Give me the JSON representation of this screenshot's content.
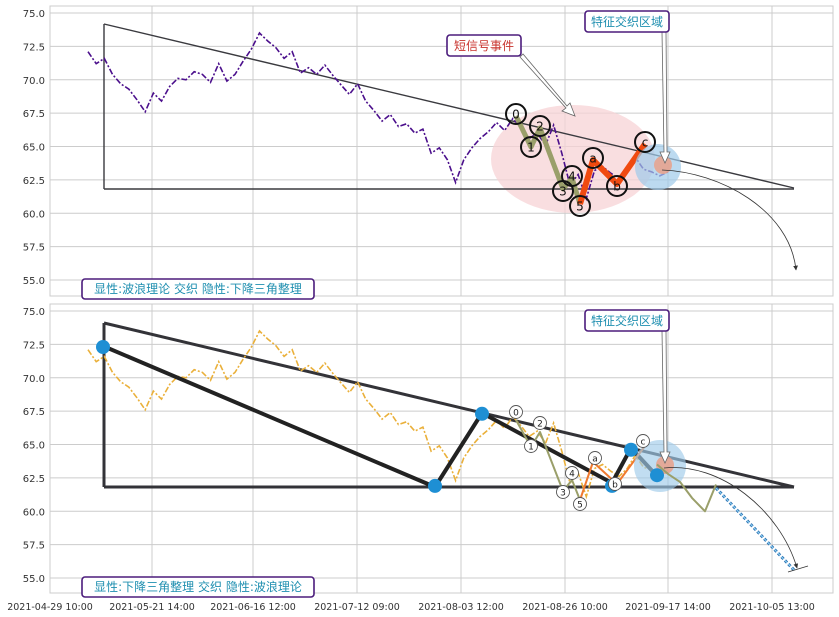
{
  "colors": {
    "panel_bg": "#ffffff",
    "grid": "#cccccc",
    "tick_text": "#333333",
    "price_top": "#4b0f8c",
    "price_bottom": "#eab03a",
    "triangle_top": "#3a3a3f",
    "triangle_bottom": "#333338",
    "wave_bright": "#f04a10",
    "wave_olive": "#9a9f6a",
    "node_blue": "#1e8fd4",
    "zone_blue": "#9fcbea",
    "zone_pink": "#f7d3d6",
    "label_teal": "#1f8fb0",
    "label_red": "#c8322c",
    "label_border": "#4b1c7c",
    "projection_dash": "#2a6fb0"
  },
  "chart_data": [
    {
      "type": "line",
      "panel": "top",
      "ylim": [
        54,
        75.5
      ],
      "yticks": [
        "75.0",
        "72.5",
        "70.0",
        "67.5",
        "65.0",
        "62.5",
        "60.0",
        "57.5",
        "55.0"
      ],
      "grid": true,
      "series": [
        {
          "values": [
            72.1,
            71.2,
            71.6,
            70.4,
            69.7,
            69.3,
            68.5,
            67.6,
            69.0,
            68.4,
            69.5,
            70.1,
            70.0,
            70.6,
            70.4,
            69.8,
            71.2,
            69.9,
            70.4,
            71.4,
            72.3,
            73.5,
            72.9,
            72.4,
            71.6,
            72.1,
            70.5,
            70.9,
            70.4,
            71.1,
            70.3,
            69.6,
            68.9,
            69.7,
            68.4,
            67.7,
            66.9,
            67.4,
            66.5,
            66.7,
            66.0,
            66.3,
            64.5,
            64.9,
            64.0,
            62.3,
            64.0,
            64.9,
            65.6,
            66.1,
            66.8,
            66.2,
            67.1,
            66.4,
            65.6,
            66.0,
            65.1,
            66.6,
            64.5,
            62.1,
            62.9,
            61.1,
            63.2,
            63.5,
            63.0,
            62.6,
            63.2,
            64.2,
            63.3,
            63.1,
            62.8,
            63.1
          ]
        }
      ],
      "annotations": {
        "wave_labels": [
          "0",
          "1",
          "2",
          "3",
          "4",
          "5",
          "a",
          "b",
          "c"
        ],
        "event_label": "短信号事件",
        "zone_label": "特征交织区域",
        "footer_label": "显性:波浪理论 交织 隐性:下降三角整理"
      }
    },
    {
      "type": "line",
      "panel": "bottom",
      "ylim": [
        54,
        75.5
      ],
      "yticks": [
        "75.0",
        "72.5",
        "70.0",
        "67.5",
        "65.0",
        "62.5",
        "60.0",
        "57.5",
        "55.0"
      ],
      "grid": true,
      "x_ticks": [
        "2021-04-29 10:00",
        "2021-05-21 14:00",
        "2021-06-16 12:00",
        "2021-07-12 09:00",
        "2021-08-03 12:00",
        "2021-08-26 10:00",
        "2021-09-17 14:00",
        "2021-10-05 13:00"
      ],
      "series": [
        {
          "values": [
            72.1,
            71.2,
            71.6,
            70.4,
            69.7,
            69.3,
            68.5,
            67.6,
            69.0,
            68.4,
            69.5,
            70.1,
            70.0,
            70.6,
            70.4,
            69.8,
            71.2,
            69.9,
            70.4,
            71.4,
            72.3,
            73.5,
            72.9,
            72.4,
            71.6,
            72.1,
            70.5,
            70.9,
            70.4,
            71.1,
            70.3,
            69.6,
            68.9,
            69.7,
            68.4,
            67.7,
            66.9,
            67.4,
            66.5,
            66.7,
            66.0,
            66.3,
            64.5,
            64.9,
            64.0,
            62.3,
            64.0,
            64.9,
            65.6,
            66.1,
            66.8,
            66.2,
            67.1,
            66.4,
            65.6,
            66.0,
            65.1,
            66.6,
            64.5,
            62.1,
            62.9,
            61.1,
            63.2,
            63.5,
            63.0,
            62.6,
            63.2,
            64.2,
            63.3,
            63.1,
            62.8,
            63.1
          ]
        }
      ],
      "triangle_pivots": [
        72.3,
        61.9,
        67.3,
        61.9,
        64.6,
        62.7
      ],
      "projection": [
        63.5,
        62.8,
        62.2,
        61.0,
        60.0,
        62.0,
        59.5,
        57.5,
        55.6
      ],
      "annotations": {
        "wave_labels": [
          "0",
          "1",
          "2",
          "3",
          "4",
          "5",
          "a",
          "b",
          "c"
        ],
        "zone_label": "特征交织区域",
        "footer_label": "显性:下降三角整理 交织 隐性:波浪理论"
      }
    }
  ]
}
